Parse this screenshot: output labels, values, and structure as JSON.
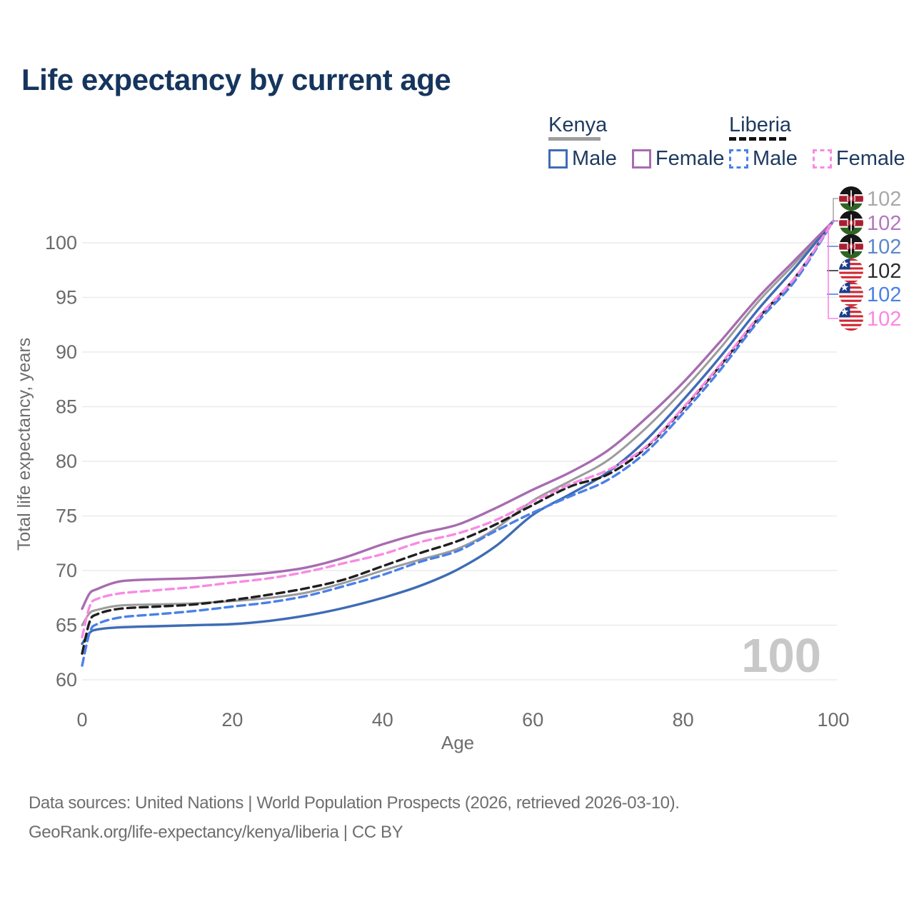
{
  "title": "Life expectancy by current age",
  "watermark": "100",
  "legend": {
    "groups": [
      {
        "name": "Kenya",
        "underline_style": "solid",
        "underline_color": "#9e9e9e",
        "items": [
          {
            "label": "Male",
            "color": "#3e6cb5",
            "dash": false
          },
          {
            "label": "Female",
            "color": "#a76cb0",
            "dash": false
          }
        ]
      },
      {
        "name": "Liberia",
        "underline_style": "dashed",
        "underline_color": "#141414",
        "items": [
          {
            "label": "Male",
            "color": "#4a80e8",
            "dash": true
          },
          {
            "label": "Female",
            "color": "#f98ae3",
            "dash": true
          }
        ]
      }
    ]
  },
  "chart_data": {
    "type": "line",
    "title": "Life expectancy by current age",
    "xlabel": "Age",
    "ylabel": "Total life expectancy, years",
    "xlim": [
      0,
      100
    ],
    "ylim": [
      60,
      102
    ],
    "xticks": [
      0,
      20,
      40,
      60,
      80,
      100
    ],
    "yticks": [
      60,
      65,
      70,
      75,
      80,
      85,
      90,
      95,
      100
    ],
    "grid": "horizontal",
    "legend_position": "top-right",
    "x": [
      0,
      1,
      2,
      5,
      10,
      15,
      20,
      25,
      30,
      35,
      40,
      45,
      50,
      55,
      60,
      65,
      70,
      75,
      80,
      85,
      90,
      95,
      100
    ],
    "series": [
      {
        "name": "Kenya Both sexes",
        "country": "kenya",
        "color": "#9b9b9b",
        "dash": false,
        "width": 3,
        "values": [
          65.0,
          66.1,
          66.4,
          66.8,
          66.9,
          67.0,
          67.2,
          67.5,
          68.0,
          68.9,
          70.0,
          71.0,
          72.0,
          73.8,
          76.4,
          78.2,
          80.1,
          83.0,
          86.5,
          90.4,
          94.6,
          98.2,
          102
        ]
      },
      {
        "name": "Kenya Male",
        "country": "kenya",
        "color": "#3e6cb5",
        "dash": false,
        "width": 3.4,
        "values": [
          63.3,
          64.3,
          64.6,
          64.8,
          64.9,
          65.0,
          65.1,
          65.4,
          65.9,
          66.6,
          67.5,
          68.6,
          70.1,
          72.2,
          75.1,
          77.0,
          79.0,
          81.9,
          85.6,
          89.6,
          93.9,
          97.8,
          102
        ]
      },
      {
        "name": "Kenya Female",
        "country": "kenya",
        "color": "#a76cb0",
        "dash": false,
        "width": 3.4,
        "values": [
          66.5,
          67.9,
          68.3,
          69.0,
          69.2,
          69.3,
          69.5,
          69.8,
          70.3,
          71.2,
          72.4,
          73.4,
          74.2,
          75.7,
          77.4,
          79.0,
          81.0,
          83.9,
          87.2,
          91.0,
          95.0,
          98.5,
          102
        ]
      },
      {
        "name": "Liberia Both sexes",
        "country": "liberia",
        "color": "#1f1f1f",
        "dash": true,
        "width": 3.4,
        "values": [
          62.4,
          65.3,
          66.0,
          66.5,
          66.7,
          66.9,
          67.3,
          67.8,
          68.4,
          69.2,
          70.4,
          71.6,
          72.7,
          74.2,
          76.0,
          77.7,
          78.8,
          81.2,
          84.8,
          88.8,
          93.1,
          96.9,
          102
        ]
      },
      {
        "name": "Liberia Male",
        "country": "liberia",
        "color": "#4a80e8",
        "dash": true,
        "width": 3.4,
        "values": [
          61.3,
          64.3,
          65.1,
          65.7,
          66.0,
          66.3,
          66.7,
          67.1,
          67.7,
          68.6,
          69.6,
          70.8,
          71.8,
          73.6,
          75.3,
          76.8,
          78.3,
          80.8,
          84.4,
          88.4,
          92.8,
          96.6,
          102
        ]
      },
      {
        "name": "Liberia Female",
        "country": "liberia",
        "color": "#f98ae3",
        "dash": true,
        "width": 3.4,
        "values": [
          63.9,
          66.7,
          67.4,
          67.9,
          68.2,
          68.5,
          68.9,
          69.3,
          69.9,
          70.7,
          71.5,
          72.6,
          73.4,
          74.6,
          76.3,
          77.9,
          79.2,
          81.3,
          84.9,
          88.9,
          93.2,
          96.9,
          102
        ]
      }
    ],
    "end_labels": [
      {
        "value": "102",
        "country": "kenya",
        "series": "Kenya Both sexes",
        "color": "#a8a8a8"
      },
      {
        "value": "102",
        "country": "kenya",
        "series": "Kenya Female",
        "color": "#b377bd"
      },
      {
        "value": "102",
        "country": "kenya",
        "series": "Kenya Male",
        "color": "#5c88ca"
      },
      {
        "value": "102",
        "country": "liberia",
        "series": "Liberia Both sexes",
        "color": "#2b2b2b"
      },
      {
        "value": "102",
        "country": "liberia",
        "series": "Liberia Male",
        "color": "#4a80e8"
      },
      {
        "value": "102",
        "country": "liberia",
        "series": "Liberia Female",
        "color": "#fb86e6"
      }
    ]
  },
  "footer": {
    "line1": "Data sources: United Nations | World Population Prospects (2026, retrieved 2026-03-10).",
    "line2": "GeoRank.org/life-expectancy/kenya/liberia | CC BY"
  }
}
